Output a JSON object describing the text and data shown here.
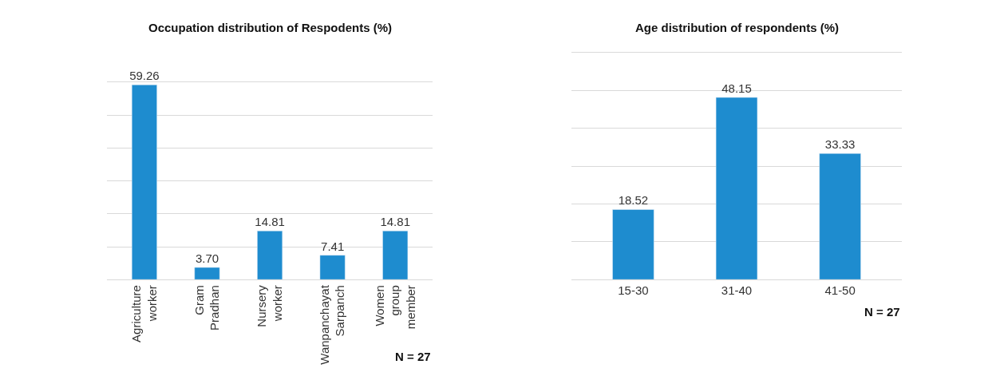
{
  "chart_data": [
    {
      "type": "bar",
      "title": "Occupation distribution of Respodents (%)",
      "categories": [
        "Agriculture\nworker",
        "Gram\nPradhan",
        "Nursery\nworker",
        "Wanpanchayat\nSarpanch",
        "Women\ngroup\nmember"
      ],
      "values": [
        59.26,
        3.7,
        14.81,
        7.41,
        14.81
      ],
      "value_labels": [
        "59.26",
        "3.70",
        "14.81",
        "7.41",
        "14.81"
      ],
      "color": "#1e8ccf",
      "ylim": [
        0,
        60
      ],
      "yticks": [
        {
          "value": 0,
          "label": null
        },
        {
          "value": 10,
          "label": null
        },
        {
          "value": 20,
          "label": null
        },
        {
          "value": 30,
          "label": null
        },
        {
          "value": 40,
          "label": null
        },
        {
          "value": 50,
          "label": null
        },
        {
          "value": 60,
          "label": null
        }
      ],
      "grid": "y",
      "tick_labels": "x",
      "annotations": [
        "N = 27"
      ]
    },
    {
      "type": "bar",
      "title": "Age distribution of respondents (%)",
      "categories": [
        "15-30",
        "31-40",
        "41-50"
      ],
      "values": [
        18.52,
        48.15,
        33.33
      ],
      "value_labels": [
        "18.52",
        "48.15",
        "33.33"
      ],
      "color": "#1e8ccf",
      "ylim": [
        0,
        60
      ],
      "yticks": [
        {
          "value": 0,
          "label": null
        },
        {
          "value": 10,
          "label": null
        },
        {
          "value": 20,
          "label": null
        },
        {
          "value": 30,
          "label": null
        },
        {
          "value": 40,
          "label": null
        },
        {
          "value": 50,
          "label": null
        },
        {
          "value": 60,
          "label": null
        }
      ],
      "grid": "y",
      "tick_labels": "x",
      "annotations": [
        "N = 27"
      ]
    }
  ]
}
